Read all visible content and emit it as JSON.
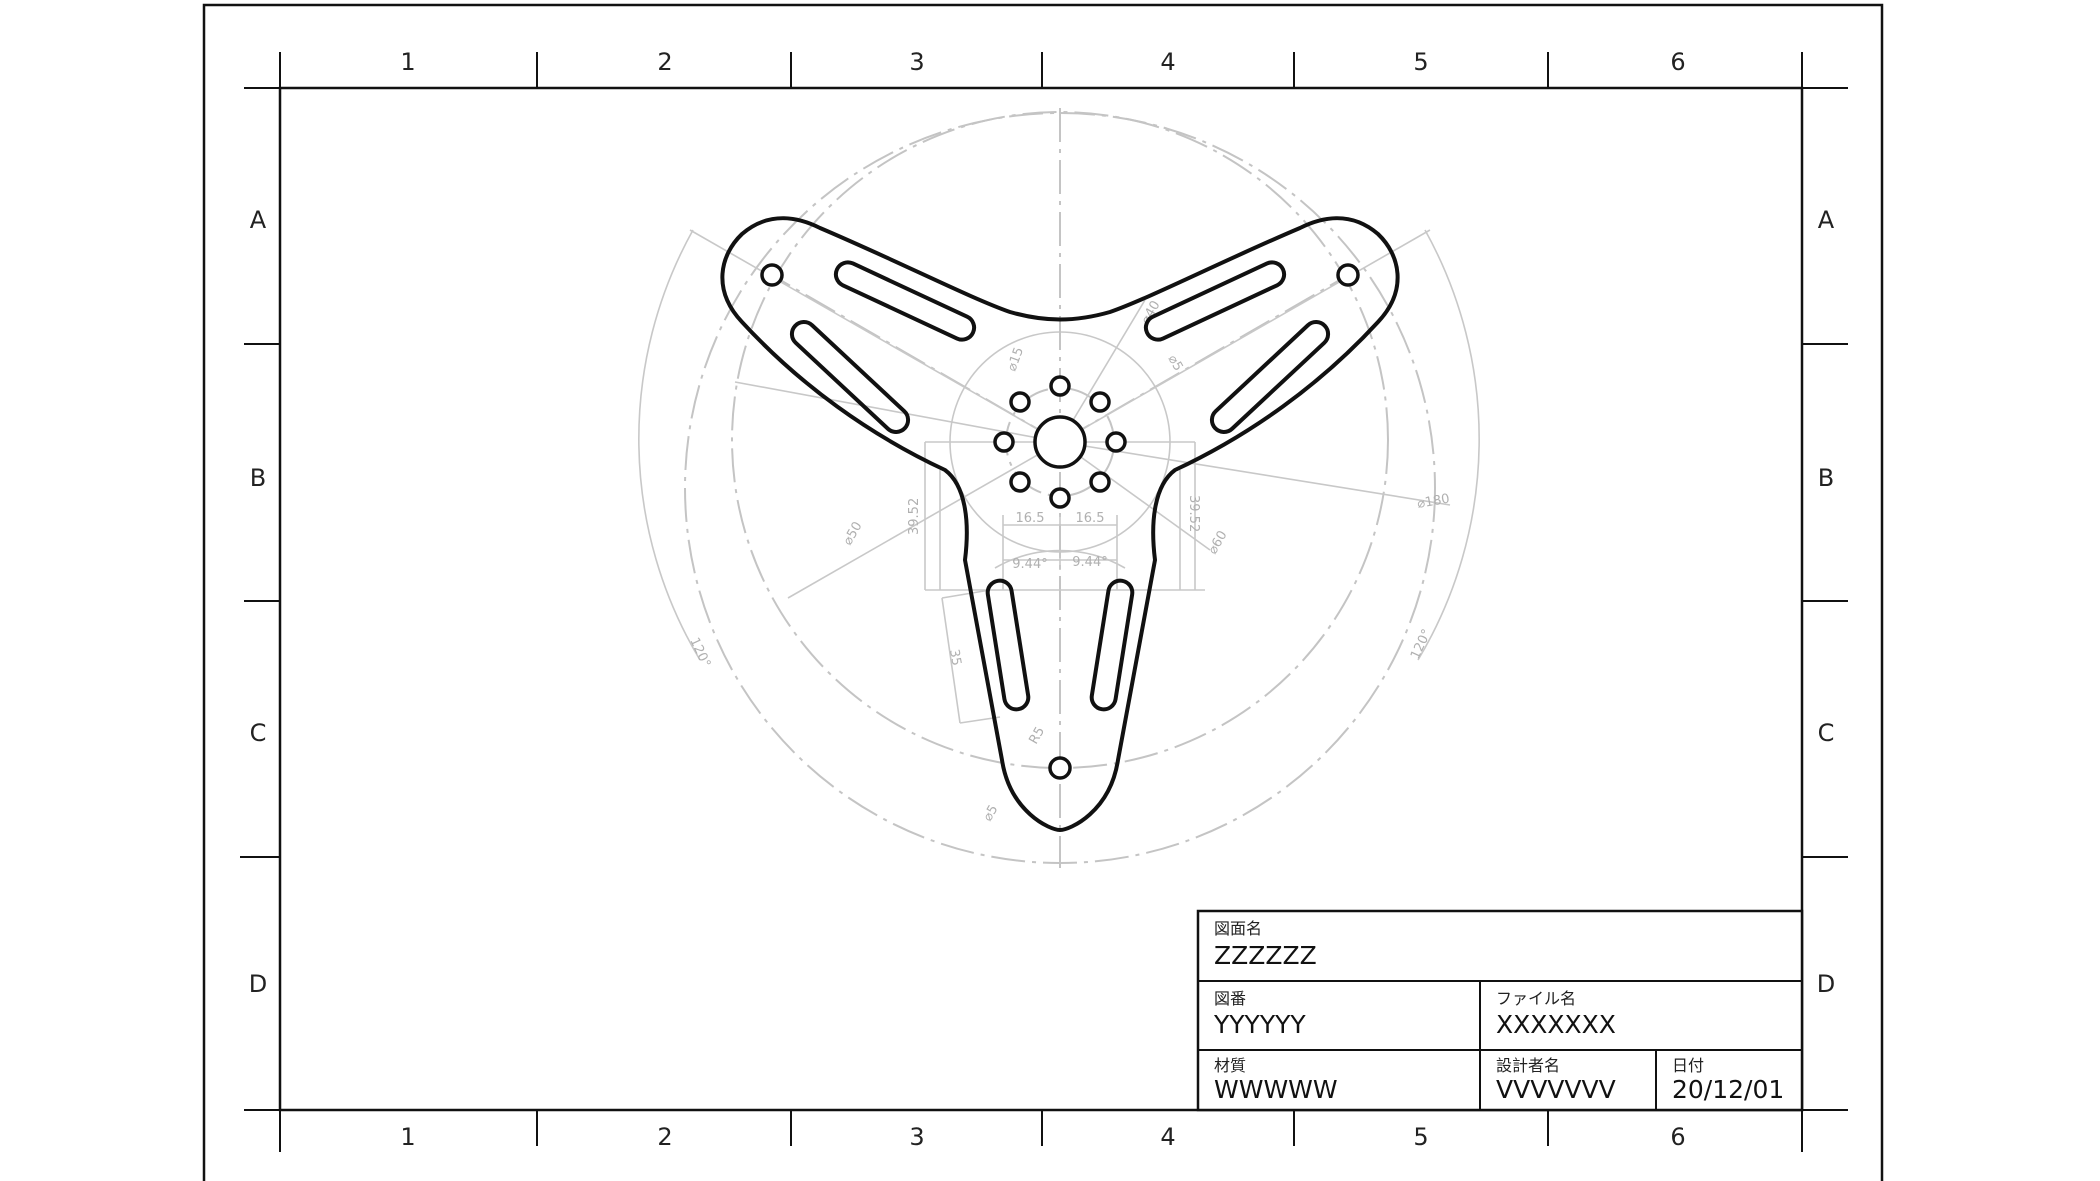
{
  "sheet": {
    "columns": [
      "1",
      "2",
      "3",
      "4",
      "5",
      "6"
    ],
    "rows": [
      "A",
      "B",
      "C",
      "D"
    ]
  },
  "dimensions": {
    "d180": "⌀180",
    "d50": "⌀50",
    "d40": "⌀40",
    "d60": "⌀60",
    "d15": "⌀15",
    "d5": "⌀5",
    "d5b": "⌀5",
    "w165_left": "16.5",
    "w165_right": "16.5",
    "h3952_left": "39.52",
    "h3952_right": "39.52",
    "a944_left": "9.44°",
    "a944_right": "9.44°",
    "len35": "35",
    "angle120_left": "120°",
    "angle120_right": "120°",
    "r5": "R5"
  },
  "title_block": {
    "drawing_name_label": "図面名",
    "drawing_name_value": "ZZZZZZ",
    "drawing_no_label": "図番",
    "drawing_no_value": "YYYYYY",
    "file_name_label": "ファイル名",
    "file_name_value": "XXXXXXX",
    "material_label": "材質",
    "material_value": "WWWWW",
    "designer_label": "設計者名",
    "designer_value": "VVVVVVV",
    "date_label": "日付",
    "date_value": "20/12/01"
  },
  "colors": {
    "border": "#111111",
    "construction_lines": "#c4c4c4",
    "part_outline": "#111111"
  }
}
